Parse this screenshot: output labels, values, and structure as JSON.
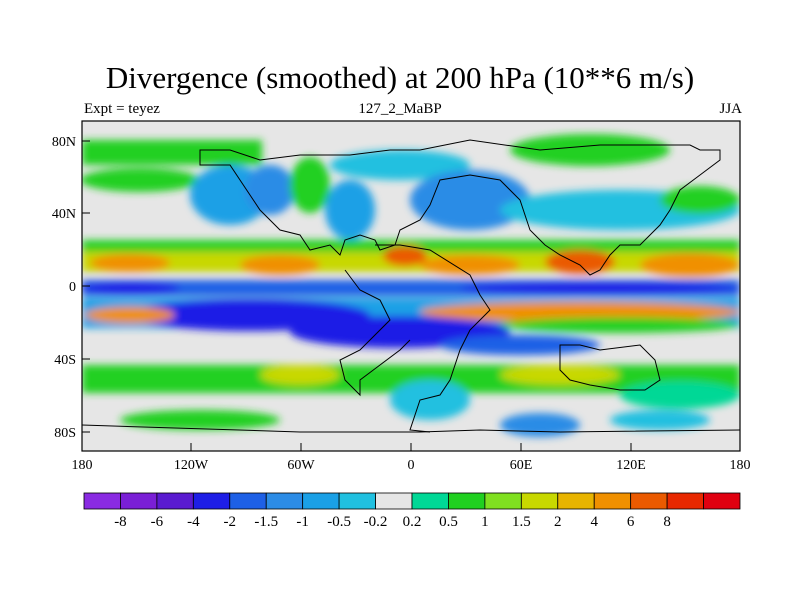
{
  "title": "Divergence (smoothed) at 200 hPa (10**6 m/s)",
  "left_label": "Expt = teyez",
  "center_label": "127_2_MaBP",
  "right_label": "JJA",
  "lat_ticks": [
    "80N",
    "40N",
    "0",
    "40S",
    "80S"
  ],
  "lon_ticks": [
    "180",
    "120W",
    "60W",
    "0",
    "60E",
    "120E",
    "180"
  ],
  "colorbar": {
    "colors": [
      "#8a2be2",
      "#7a1fd6",
      "#5a1ad0",
      "#1e1ee6",
      "#1e60e6",
      "#2c8ce6",
      "#1aa0e6",
      "#20c0e0",
      "#e6e6e6",
      "#00d896",
      "#20d020",
      "#80e020",
      "#c8d800",
      "#e8b400",
      "#f09000",
      "#ea5a00",
      "#e82800",
      "#e00010"
    ],
    "labels": [
      "-8",
      "-6",
      "-4",
      "-2",
      "-1.5",
      "-1",
      "-0.5",
      "-0.2",
      "0.2",
      "0.5",
      "1",
      "1.5",
      "2",
      "4",
      "6",
      "8"
    ]
  }
}
